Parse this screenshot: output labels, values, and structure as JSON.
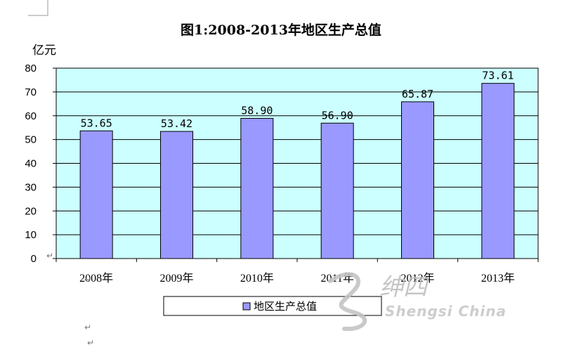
{
  "chart_data": {
    "type": "bar",
    "title": "图1:2008-2013年地区生产总值",
    "ylabel": "亿元",
    "xlabel": "",
    "categories": [
      "2008年",
      "2009年",
      "2010年",
      "2011年",
      "2012年",
      "2013年"
    ],
    "series": [
      {
        "name": "地区生产总值",
        "values": [
          53.65,
          53.42,
          58.9,
          56.9,
          65.87,
          73.61
        ],
        "labels": [
          "53.65",
          "53.42",
          "58.90",
          "56.90",
          "65.87",
          "73.61"
        ],
        "color": "#9999ff"
      }
    ],
    "ylim": [
      0,
      80
    ],
    "yticks": [
      0,
      10,
      20,
      30,
      40,
      50,
      60,
      70,
      80
    ],
    "grid": true,
    "legend": "bottom",
    "plot_background": "#ccffff"
  },
  "watermark": {
    "text_cn": "绅四",
    "text_en": "Shengsi China"
  },
  "return_mark": "↵"
}
